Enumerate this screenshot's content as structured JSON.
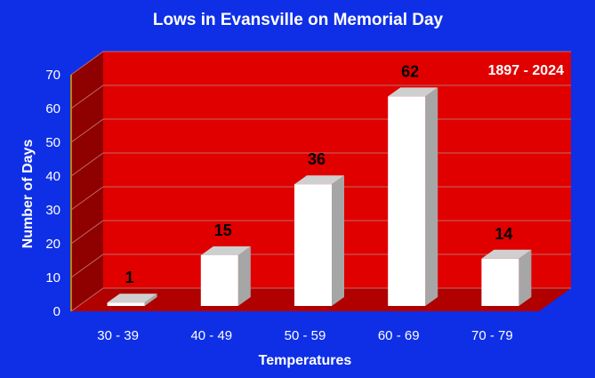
{
  "chart_data": {
    "type": "bar",
    "title": "Lows in Evansville on Memorial Day",
    "annotation": "1897 - 2024",
    "xlabel": "Temperatures",
    "ylabel": "Number of Days",
    "categories": [
      "30 - 39",
      "40 - 49",
      "50 - 59",
      "60 - 69",
      "70 - 79"
    ],
    "values": [
      1,
      15,
      36,
      62,
      14
    ],
    "ylim": [
      0,
      70
    ],
    "yticks": [
      "0",
      "10",
      "20",
      "30",
      "40",
      "50",
      "60",
      "70"
    ],
    "grid": true,
    "legend": "none",
    "colors": {
      "background": "#0f2fe6",
      "plot_back": "#e00000",
      "plot_side": "#8f0000",
      "plot_floor": "#b00000",
      "bar_front": "#ffffff",
      "bar_side": "#a6a6a6",
      "bar_top": "#cfcfcf",
      "gridline": "#c06a6a",
      "axis_line": "#b8860b"
    }
  }
}
